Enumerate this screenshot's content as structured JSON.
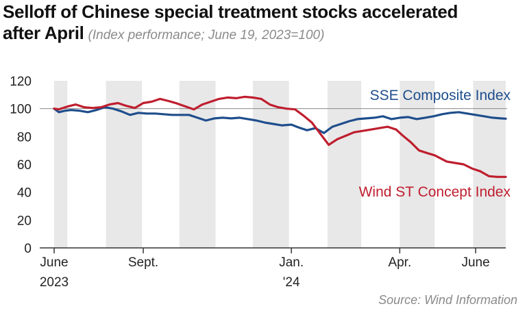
{
  "title_line1": "Selloff of Chinese special treatment stocks accelerated",
  "title_line2": "after April",
  "subtitle": "(Index performance; June 19, 2023=100)",
  "source": "Source: Wind Information",
  "chart_data": {
    "type": "line",
    "ylim": [
      0,
      120
    ],
    "yticks": [
      0,
      20,
      40,
      60,
      80,
      100,
      120
    ],
    "reference_line": 100,
    "xlim": [
      "2023-06-19",
      "2024-06-28"
    ],
    "xtick_labels": [
      {
        "date": "2023-06-19",
        "line1": "June",
        "line2": "2023"
      },
      {
        "date": "2023-09-01",
        "line1": "Sept.",
        "line2": ""
      },
      {
        "date": "2024-01-02",
        "line1": "Jan.",
        "line2": "'24"
      },
      {
        "date": "2024-04-01",
        "line1": "Apr.",
        "line2": ""
      },
      {
        "date": "2024-06-03",
        "line1": "June",
        "line2": ""
      }
    ],
    "shaded_months": [
      [
        "2023-06-19",
        "2023-06-30"
      ],
      [
        "2023-08-01",
        "2023-08-31"
      ],
      [
        "2023-10-01",
        "2023-10-31"
      ],
      [
        "2023-12-01",
        "2023-12-31"
      ],
      [
        "2024-02-01",
        "2024-02-29"
      ],
      [
        "2024-04-01",
        "2024-04-30"
      ],
      [
        "2024-06-01",
        "2024-06-28"
      ]
    ],
    "series": [
      {
        "name": "SSE Composite Index",
        "color": "#1f4e8c",
        "x": [
          "2023-06-19",
          "2023-06-23",
          "2023-06-28",
          "2023-07-03",
          "2023-07-10",
          "2023-07-17",
          "2023-07-24",
          "2023-07-31",
          "2023-08-07",
          "2023-08-14",
          "2023-08-21",
          "2023-08-28",
          "2023-09-04",
          "2023-09-11",
          "2023-09-18",
          "2023-09-25",
          "2023-10-09",
          "2023-10-16",
          "2023-10-23",
          "2023-10-30",
          "2023-11-06",
          "2023-11-13",
          "2023-11-20",
          "2023-11-27",
          "2023-12-04",
          "2023-12-11",
          "2023-12-18",
          "2023-12-25",
          "2024-01-02",
          "2024-01-08",
          "2024-01-15",
          "2024-01-22",
          "2024-01-29",
          "2024-02-05",
          "2024-02-19",
          "2024-02-26",
          "2024-03-04",
          "2024-03-11",
          "2024-03-18",
          "2024-03-25",
          "2024-04-01",
          "2024-04-08",
          "2024-04-15",
          "2024-04-22",
          "2024-04-29",
          "2024-05-06",
          "2024-05-13",
          "2024-05-20",
          "2024-05-27",
          "2024-06-03",
          "2024-06-10",
          "2024-06-17",
          "2024-06-24",
          "2024-06-28"
        ],
        "values": [
          100,
          97.5,
          98.5,
          99,
          98.5,
          97.5,
          99,
          101,
          100,
          98,
          95.5,
          97,
          96.5,
          96.5,
          96,
          95.5,
          95.5,
          93.5,
          91.5,
          93,
          93.5,
          93,
          93.5,
          92.5,
          91.5,
          90,
          89,
          88,
          88.5,
          86.5,
          84.5,
          86,
          82.5,
          87,
          91,
          92.5,
          93,
          93.5,
          94.5,
          92.5,
          93.5,
          94,
          92.5,
          93.5,
          94.5,
          96,
          97,
          97.5,
          96.5,
          95.5,
          94.5,
          93.5,
          93,
          92.8
        ]
      },
      {
        "name": "Wind ST Concept Index",
        "color": "#bf1e2e",
        "x": [
          "2023-06-19",
          "2023-06-23",
          "2023-06-30",
          "2023-07-07",
          "2023-07-14",
          "2023-07-21",
          "2023-07-28",
          "2023-08-04",
          "2023-08-11",
          "2023-08-18",
          "2023-08-25",
          "2023-09-01",
          "2023-09-08",
          "2023-09-15",
          "2023-09-22",
          "2023-09-28",
          "2023-10-13",
          "2023-10-20",
          "2023-10-27",
          "2023-11-03",
          "2023-11-10",
          "2023-11-17",
          "2023-11-24",
          "2023-12-01",
          "2023-12-08",
          "2023-12-15",
          "2023-12-22",
          "2023-12-29",
          "2024-01-05",
          "2024-01-12",
          "2024-01-19",
          "2024-01-26",
          "2024-02-02",
          "2024-02-09",
          "2024-02-23",
          "2024-03-01",
          "2024-03-08",
          "2024-03-15",
          "2024-03-22",
          "2024-03-29",
          "2024-04-03",
          "2024-04-10",
          "2024-04-17",
          "2024-04-24",
          "2024-04-30",
          "2024-05-10",
          "2024-05-17",
          "2024-05-24",
          "2024-05-31",
          "2024-06-07",
          "2024-06-14",
          "2024-06-21",
          "2024-06-28"
        ],
        "values": [
          100,
          99.5,
          101.5,
          103,
          101,
          100.5,
          101,
          103,
          104,
          102,
          100.5,
          104,
          105,
          107,
          105.5,
          104,
          99.5,
          103,
          105,
          107,
          108,
          107.5,
          108.5,
          108,
          107,
          103,
          101,
          100,
          99.5,
          95,
          90,
          82,
          74,
          78,
          83,
          84,
          85,
          86,
          87,
          85,
          81,
          76,
          70,
          68,
          66.5,
          62,
          61,
          60,
          57,
          55,
          51.5,
          51,
          51
        ]
      }
    ]
  }
}
